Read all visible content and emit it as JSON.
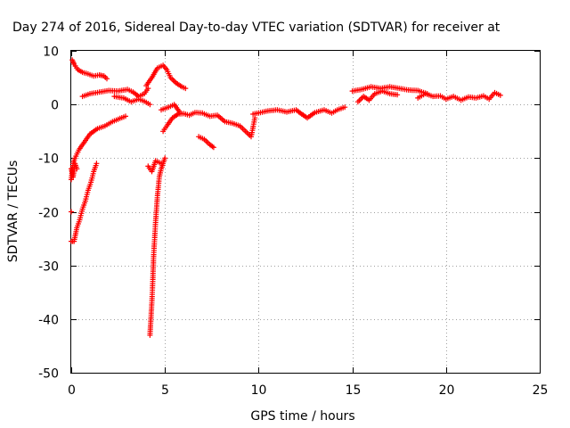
{
  "chart_data": {
    "type": "scatter",
    "title": "Day 274 of 2016, Sidereal Day-to-day VTEC variation (SDTVAR) for receiver at",
    "xlabel": "GPS time / hours",
    "ylabel": "SDTVAR / TECUs",
    "xlim": [
      0,
      25
    ],
    "ylim": [
      -50,
      10
    ],
    "xticks": [
      0,
      5,
      10,
      15,
      20,
      25
    ],
    "yticks": [
      -50,
      -40,
      -30,
      -20,
      -10,
      0,
      10
    ],
    "grid": true,
    "marker": "+",
    "color": "#ff0000",
    "series": [
      {
        "name": "SDTVAR",
        "segments": [
          {
            "x": [
              0.05,
              0.15,
              0.35,
              0.6,
              0.9,
              1.2,
              1.5,
              1.75,
              1.9
            ],
            "y": [
              8.3,
              7.5,
              6.5,
              6.0,
              5.7,
              5.3,
              5.5,
              5.3,
              4.8
            ]
          },
          {
            "x": [
              0.6,
              1.0,
              1.5,
              2.0,
              2.5,
              3.0,
              3.3,
              3.6,
              3.9,
              4.1
            ],
            "y": [
              1.5,
              2.0,
              2.3,
              2.6,
              2.5,
              2.8,
              2.3,
              1.5,
              2.0,
              3.0
            ]
          },
          {
            "x": [
              2.3,
              2.8,
              3.2,
              3.6,
              3.9,
              4.2
            ],
            "y": [
              1.5,
              1.2,
              0.5,
              1.0,
              0.6,
              0.0
            ]
          },
          {
            "x": [
              0.0,
              0.1,
              0.2,
              0.4,
              0.7,
              1.0,
              1.4,
              1.8,
              2.2,
              2.6,
              2.9
            ],
            "y": [
              -14.0,
              -11.0,
              -10.0,
              -8.5,
              -7.0,
              -5.5,
              -4.5,
              -4.0,
              -3.2,
              -2.6,
              -2.2
            ]
          },
          {
            "x": [
              0.0,
              0.1,
              0.2,
              0.3
            ],
            "y": [
              -12.0,
              -13.5,
              -11.0,
              -12.0
            ]
          },
          {
            "x": [
              0.0,
              0.15,
              0.3,
              0.45,
              0.6,
              0.75,
              0.9,
              1.05,
              1.2,
              1.35
            ],
            "y": [
              -25.5,
              -25.5,
              -23.0,
              -21.5,
              -19.5,
              -18.0,
              -16.0,
              -14.5,
              -12.5,
              -11.0
            ]
          },
          {
            "x": [
              0.0
            ],
            "y": [
              -20.0
            ]
          },
          {
            "x": [
              4.2,
              4.25,
              4.3,
              4.35,
              4.4,
              4.5,
              4.6,
              4.7,
              4.8,
              4.9,
              5.0
            ],
            "y": [
              -43.0,
              -40.0,
              -37.0,
              -33.0,
              -28.0,
              -22.0,
              -17.0,
              -13.5,
              -12.0,
              -11.0,
              -10.0
            ]
          },
          {
            "x": [
              4.1,
              4.3,
              4.5,
              4.8
            ],
            "y": [
              -11.5,
              -12.5,
              -10.5,
              -11.0
            ]
          },
          {
            "x": [
              4.0,
              4.3,
              4.6,
              4.9,
              5.1,
              5.3,
              5.6,
              5.9,
              6.1
            ],
            "y": [
              3.5,
              5.0,
              6.8,
              7.3,
              6.5,
              5.0,
              4.0,
              3.3,
              3.0
            ]
          },
          {
            "x": [
              4.9,
              5.1,
              5.4,
              5.7,
              6.0,
              6.3,
              6.6,
              7.0,
              7.4,
              7.8,
              8.2,
              8.6,
              9.0,
              9.3,
              9.6,
              9.8
            ],
            "y": [
              -5.0,
              -4.0,
              -2.5,
              -1.8,
              -1.7,
              -2.0,
              -1.5,
              -1.6,
              -2.2,
              -2.0,
              -3.2,
              -3.5,
              -4.0,
              -5.0,
              -6.0,
              -2.5
            ]
          },
          {
            "x": [
              4.8,
              5.2,
              5.5,
              5.8
            ],
            "y": [
              -1.0,
              -0.5,
              0.0,
              -1.5
            ]
          },
          {
            "x": [
              6.8,
              7.1,
              7.4,
              7.6
            ],
            "y": [
              -6.0,
              -6.5,
              -7.5,
              -8.0
            ]
          },
          {
            "x": [
              9.7,
              10.1,
              10.5,
              11.0,
              11.5,
              12.0,
              12.3,
              12.6,
              13.0,
              13.5,
              13.9,
              14.2,
              14.6
            ],
            "y": [
              -1.8,
              -1.5,
              -1.2,
              -1.0,
              -1.4,
              -1.0,
              -1.8,
              -2.5,
              -1.5,
              -1.0,
              -1.6,
              -1.0,
              -0.5
            ]
          },
          {
            "x": [
              15.0,
              15.5,
              16.0,
              16.5,
              17.0,
              17.5,
              18.0,
              18.5,
              19.0
            ],
            "y": [
              2.5,
              2.8,
              3.3,
              3.0,
              3.3,
              3.0,
              2.7,
              2.6,
              2.0
            ]
          },
          {
            "x": [
              15.3,
              15.6,
              15.9,
              16.2,
              16.6,
              17.0,
              17.4
            ],
            "y": [
              0.5,
              1.5,
              0.8,
              2.0,
              2.5,
              2.0,
              1.8
            ]
          },
          {
            "x": [
              18.5,
              18.9,
              19.3,
              19.7,
              20.0,
              20.4,
              20.8,
              21.2,
              21.6,
              22.0,
              22.3,
              22.6,
              22.9
            ],
            "y": [
              1.2,
              2.0,
              1.5,
              1.6,
              1.0,
              1.5,
              0.8,
              1.4,
              1.2,
              1.6,
              1.0,
              2.2,
              1.7
            ]
          }
        ]
      }
    ]
  }
}
